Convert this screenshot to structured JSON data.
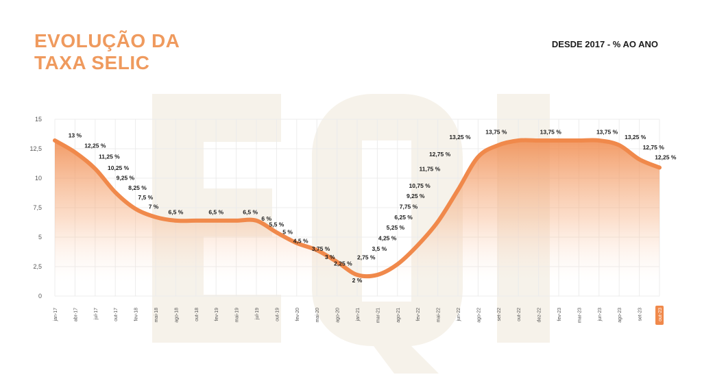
{
  "header": {
    "title_line1": "EVOLUÇÃO DA",
    "title_line2": "TAXA SELIC",
    "subtitle": "DESDE 2017 - % AO ANO"
  },
  "colors": {
    "accent": "#ef9a5e",
    "line": "#f0894b",
    "highlight": "#f0894b",
    "watermark": "#f6f2ea",
    "grid": "#ececec",
    "text": "#1b1b1b",
    "axis_text": "#555555"
  },
  "chart_data": {
    "type": "area",
    "title": "EVOLUÇÃO DA TAXA SELIC",
    "subtitle": "DESDE 2017 - % AO ANO",
    "ylim": [
      0,
      15
    ],
    "yticks": [
      0,
      2.5,
      5,
      7.5,
      10,
      12.5,
      15
    ],
    "ytick_labels": [
      "0",
      "2,5",
      "5",
      "7,5",
      "10",
      "12,5",
      "15"
    ],
    "grid": true,
    "xtick_labels": [
      "jan-17",
      "abr-17",
      "jul-17",
      "out-17",
      "fev-18",
      "mai-18",
      "ago-18",
      "out-18",
      "fev-19",
      "mai-19",
      "jul-19",
      "out-19",
      "fev-20",
      "mai-20",
      "ago-20",
      "jan-21",
      "mar-21",
      "ago-21",
      "fev-22",
      "mai-22",
      "jun-22",
      "ago-22",
      "set-22",
      "out-22",
      "dez-22",
      "fev-23",
      "mar-23",
      "jun-23",
      "ago-23",
      "set-23",
      "out-23"
    ],
    "highlighted_tick": "out-23",
    "x": [
      0,
      1,
      2,
      3,
      4,
      5,
      6,
      7,
      8,
      9,
      10,
      11,
      12,
      13,
      14,
      15,
      16,
      17,
      18,
      19,
      20,
      21,
      22,
      23,
      24,
      25,
      26,
      27,
      28,
      29,
      30
    ],
    "y": [
      13.2,
      12.2,
      10.8,
      8.8,
      7.4,
      6.7,
      6.4,
      6.4,
      6.4,
      6.4,
      6.4,
      5.4,
      4.5,
      3.9,
      2.9,
      1.8,
      1.8,
      2.7,
      4.3,
      6.3,
      9.0,
      11.8,
      12.8,
      13.2,
      13.2,
      13.2,
      13.2,
      13.2,
      12.8,
      11.6,
      10.9
    ],
    "annotations": [
      {
        "x": 1.0,
        "y": 13.45,
        "text": "13 %"
      },
      {
        "x": 2.0,
        "y": 12.6,
        "text": "12,25 %"
      },
      {
        "x": 2.7,
        "y": 11.65,
        "text": "11,25 %"
      },
      {
        "x": 3.15,
        "y": 10.7,
        "text": "10,25 %"
      },
      {
        "x": 3.5,
        "y": 9.85,
        "text": "9,25 %"
      },
      {
        "x": 4.1,
        "y": 9.0,
        "text": "8,25 %"
      },
      {
        "x": 4.5,
        "y": 8.2,
        "text": "7,5 %"
      },
      {
        "x": 4.9,
        "y": 7.4,
        "text": "7 %"
      },
      {
        "x": 6.0,
        "y": 6.95,
        "text": "6,5 %"
      },
      {
        "x": 8.0,
        "y": 6.95,
        "text": "6,5 %"
      },
      {
        "x": 9.7,
        "y": 6.95,
        "text": "6,5 %"
      },
      {
        "x": 10.5,
        "y": 6.4,
        "text": "6 %"
      },
      {
        "x": 11.0,
        "y": 5.9,
        "text": "5,5 %"
      },
      {
        "x": 11.55,
        "y": 5.25,
        "text": "5 %"
      },
      {
        "x": 12.2,
        "y": 4.5,
        "text": "4,5 %"
      },
      {
        "x": 13.2,
        "y": 3.85,
        "text": "3,75 %"
      },
      {
        "x": 13.65,
        "y": 3.15,
        "text": "3 %"
      },
      {
        "x": 14.3,
        "y": 2.6,
        "text": "2,25 %"
      },
      {
        "x": 15.0,
        "y": 1.15,
        "text": "2 %"
      },
      {
        "x": 15.45,
        "y": 3.1,
        "text": "2,75 %"
      },
      {
        "x": 16.1,
        "y": 3.85,
        "text": "3,5 %"
      },
      {
        "x": 16.5,
        "y": 4.75,
        "text": "4,25 %"
      },
      {
        "x": 16.9,
        "y": 5.65,
        "text": "5,25 %"
      },
      {
        "x": 17.3,
        "y": 6.5,
        "text": "6,25 %"
      },
      {
        "x": 17.55,
        "y": 7.4,
        "text": "7,75 %"
      },
      {
        "x": 17.9,
        "y": 8.3,
        "text": "9,25 %"
      },
      {
        "x": 18.1,
        "y": 9.2,
        "text": "10,75 %"
      },
      {
        "x": 18.6,
        "y": 10.6,
        "text": "11,75 %"
      },
      {
        "x": 19.1,
        "y": 11.85,
        "text": "12,75 %"
      },
      {
        "x": 20.1,
        "y": 13.3,
        "text": "13,25 %"
      },
      {
        "x": 21.9,
        "y": 13.75,
        "text": "13,75 %"
      },
      {
        "x": 24.6,
        "y": 13.75,
        "text": "13,75 %"
      },
      {
        "x": 27.4,
        "y": 13.75,
        "text": "13,75 %"
      },
      {
        "x": 28.8,
        "y": 13.3,
        "text": "13,25 %"
      },
      {
        "x": 29.7,
        "y": 12.45,
        "text": "12,75 %"
      },
      {
        "x": 30.3,
        "y": 11.6,
        "text": "12,25 %"
      }
    ]
  }
}
